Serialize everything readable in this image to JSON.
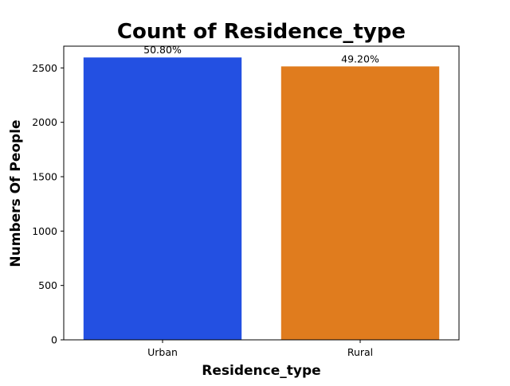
{
  "chart_data": {
    "type": "bar",
    "title": "Count of Residence_type",
    "xlabel": "Residence_type",
    "ylabel": "Numbers Of People",
    "categories": [
      "Urban",
      "Rural"
    ],
    "values": [
      2596,
      2514
    ],
    "data_labels": [
      "50.80%",
      "49.20%"
    ],
    "colors": [
      "#2350e2",
      "#e07c1e"
    ],
    "ylim": [
      0,
      2700
    ],
    "yticks": [
      0,
      500,
      1000,
      1500,
      2000,
      2500
    ],
    "grid": false,
    "legend": "none"
  }
}
